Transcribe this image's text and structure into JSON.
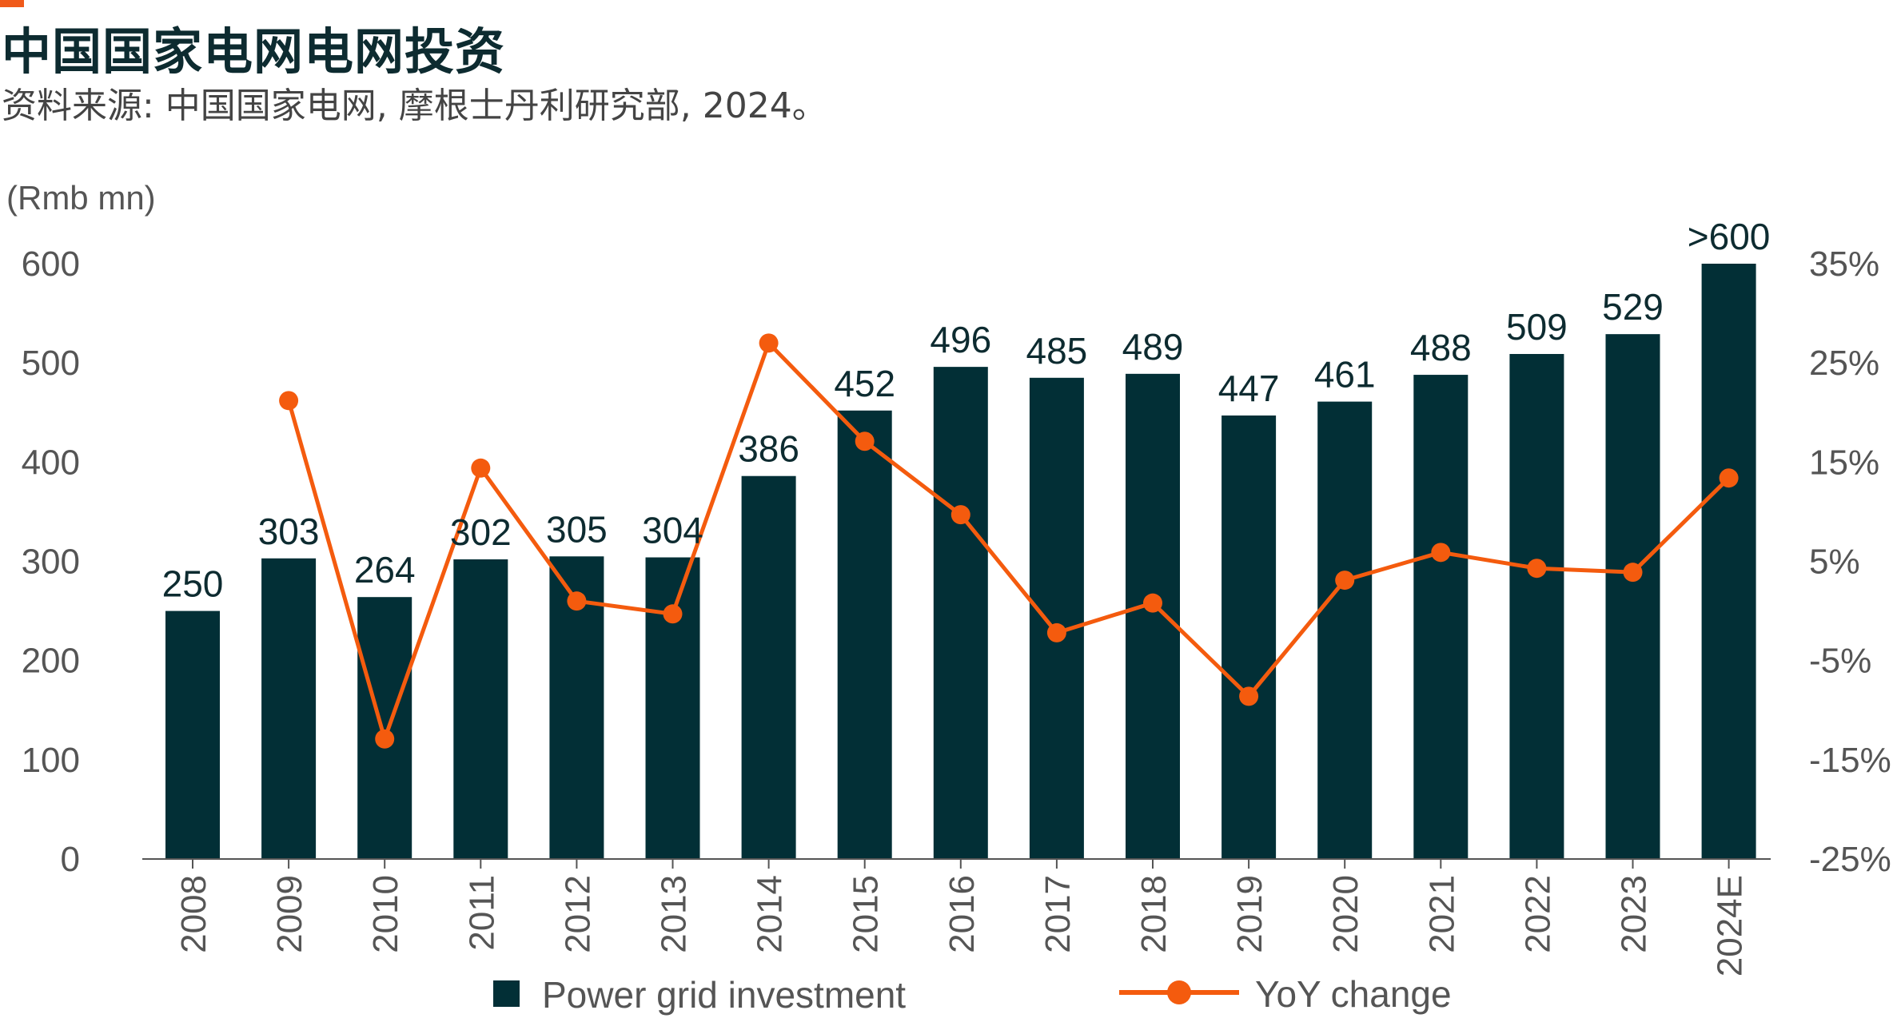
{
  "header": {
    "title": "中国国家电网电网投资",
    "subtitle": "资料来源: 中国国家电网, 摩根士丹利研究部, 2024。"
  },
  "colors": {
    "bar": "#022f36",
    "line": "#f45b0e",
    "accent": "#f05a1a",
    "axis": "#555555"
  },
  "chart_data": {
    "type": "bar",
    "categories": [
      "2008",
      "2009",
      "2010",
      "2011",
      "2012",
      "2013",
      "2014",
      "2015",
      "2016",
      "2017",
      "2018",
      "2019",
      "2020",
      "2021",
      "2022",
      "2023",
      "2024E"
    ],
    "bar_labels": [
      "250",
      "303",
      "264",
      "302",
      "305",
      "304",
      "386",
      "452",
      "496",
      "485",
      "489",
      "447",
      "461",
      "488",
      "509",
      "529",
      ">600"
    ],
    "series": [
      {
        "name": "Power grid investment",
        "type": "bar",
        "axis": "left",
        "values": [
          250,
          303,
          264,
          302,
          305,
          304,
          386,
          452,
          496,
          485,
          489,
          447,
          461,
          488,
          509,
          529,
          600
        ]
      },
      {
        "name": "YoY change",
        "type": "line",
        "axis": "right",
        "values": [
          null,
          21.2,
          -12.9,
          14.4,
          1.0,
          -0.3,
          27.0,
          17.1,
          9.7,
          -2.2,
          0.8,
          -8.6,
          3.1,
          5.9,
          4.3,
          3.9,
          13.4
        ]
      }
    ],
    "y_left": {
      "label": "(Rmb mn)",
      "ticks": [
        "0",
        "100",
        "200",
        "300",
        "400",
        "500",
        "600"
      ],
      "range": [
        0,
        600
      ]
    },
    "y_right": {
      "ticks": [
        "-25%",
        "-15%",
        "-5%",
        "5%",
        "15%",
        "25%",
        "35%"
      ],
      "range": [
        -25,
        35
      ]
    },
    "grid": false,
    "legend": "bottom"
  }
}
